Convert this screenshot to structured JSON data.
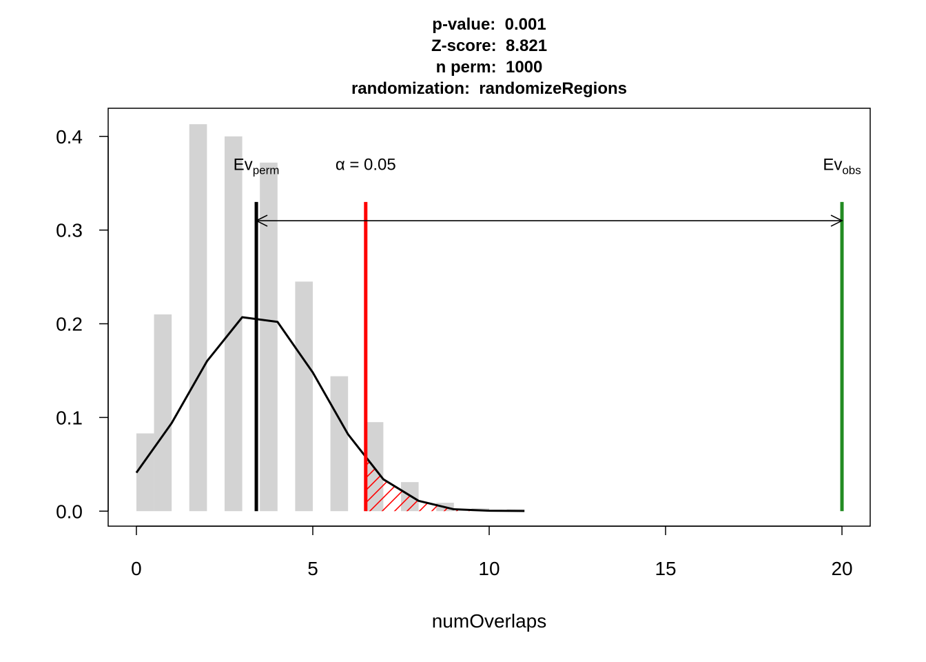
{
  "chart_data": {
    "type": "bar",
    "title_lines": [
      {
        "key": "p-value:",
        "value": "0.001"
      },
      {
        "key": "Z-score:",
        "value": "8.821"
      },
      {
        "key": "n perm:",
        "value": "1000"
      },
      {
        "key": "randomization:",
        "value": "randomizeRegions"
      }
    ],
    "xlabel": "numOverlaps",
    "ylabel": "",
    "xlim": [
      -0.8,
      20.8
    ],
    "ylim": [
      -0.016,
      0.43
    ],
    "xticks": [
      0,
      5,
      10,
      15,
      20
    ],
    "yticks": [
      0.0,
      0.1,
      0.2,
      0.3,
      0.4
    ],
    "ytick_labels": [
      "0.0",
      "0.1",
      "0.2",
      "0.3",
      "0.4"
    ],
    "bar_color": "#d3d3d3",
    "bars": [
      {
        "x0": 0.0,
        "x1": 0.5,
        "value": 0.083
      },
      {
        "x0": 0.5,
        "x1": 1.0,
        "value": 0.21
      },
      {
        "x0": 1.5,
        "x1": 2.0,
        "value": 0.413
      },
      {
        "x0": 2.5,
        "x1": 3.0,
        "value": 0.4
      },
      {
        "x0": 3.5,
        "x1": 4.0,
        "value": 0.372
      },
      {
        "x0": 4.5,
        "x1": 5.0,
        "value": 0.245
      },
      {
        "x0": 5.5,
        "x1": 6.0,
        "value": 0.144
      },
      {
        "x0": 6.5,
        "x1": 7.0,
        "value": 0.095
      },
      {
        "x0": 7.5,
        "x1": 8.0,
        "value": 0.031
      },
      {
        "x0": 8.5,
        "x1": 9.0,
        "value": 0.009
      },
      {
        "x0": 9.5,
        "x1": 10.0,
        "value": 0.003
      },
      {
        "x0": 10.5,
        "x1": 11.0,
        "value": 0.002
      }
    ],
    "density_curve": {
      "color": "#000000",
      "x": [
        0,
        1,
        2,
        3,
        4,
        5,
        6,
        7,
        8,
        9,
        10,
        11
      ],
      "y": [
        0.041,
        0.094,
        0.16,
        0.207,
        0.202,
        0.148,
        0.082,
        0.034,
        0.011,
        0.002,
        0.0005,
        0.0002
      ]
    },
    "reference_lines": [
      {
        "name": "ev-perm",
        "x": 3.4,
        "y_top": 0.33,
        "color": "#000000",
        "label": "Ev",
        "label_sub": "perm",
        "label_x": 3.4
      },
      {
        "name": "alpha",
        "x": 6.5,
        "y_top": 0.33,
        "color": "#ff0000",
        "label": "α = 0.05",
        "label_sub": "",
        "label_x": 6.5
      },
      {
        "name": "ev-obs",
        "x": 20.0,
        "y_top": 0.33,
        "color": "#228b22",
        "label": "Ev",
        "label_sub": "obs",
        "label_x": 20.0
      }
    ],
    "label_y": 0.37,
    "arrow": {
      "x0": 3.4,
      "x1": 20.0,
      "y": 0.31,
      "color": "#000000"
    },
    "hatch_region": {
      "x0": 6.5,
      "x1": 11.0,
      "color": "#ff0000"
    }
  }
}
